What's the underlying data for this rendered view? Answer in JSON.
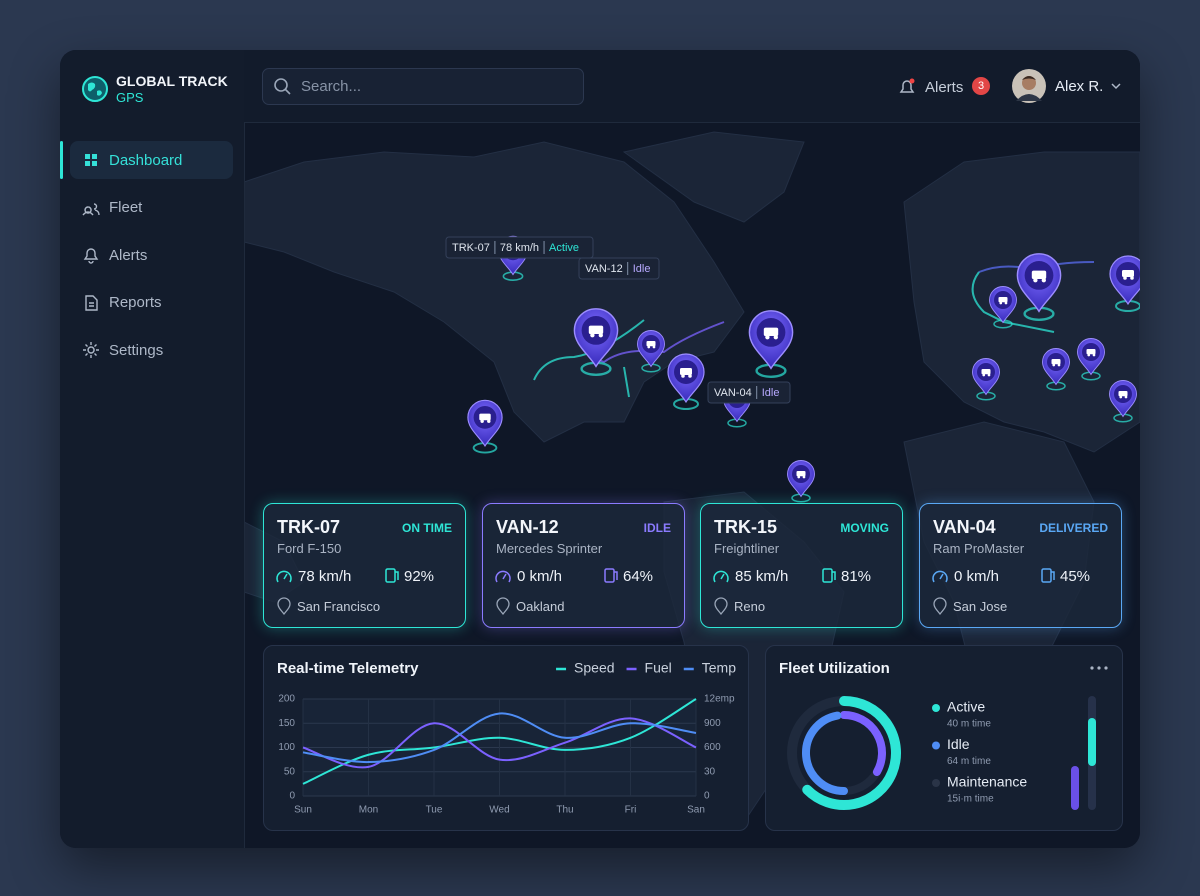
{
  "brand": {
    "title": "GLOBAL TRACK",
    "subtitle": "GPS"
  },
  "nav": [
    "Dashboard",
    "Fleet",
    "Alerts",
    "Reports",
    "Settings"
  ],
  "search_placeholder": "Search...",
  "header": {
    "alerts_label": "Alerts",
    "alerts_count": 3,
    "user": "Alex R."
  },
  "map_tooltips": [
    {
      "id": "TRK-07",
      "speed": "78 km/h",
      "status": "Active"
    },
    {
      "id": "VAN-12",
      "status": "Idle"
    },
    {
      "id": "VAN-04",
      "status": "Idle"
    }
  ],
  "vehicles": [
    {
      "id": "TRK-07",
      "model": "Ford F-150",
      "status": "ON TIME",
      "speed": "78 km/h",
      "fuel": "92%",
      "location": "San Francisco",
      "color": "#2ee6d6"
    },
    {
      "id": "VAN-12",
      "model": "Mercedes Sprinter",
      "status": "IDLE",
      "speed": "0 km/h",
      "fuel": "64%",
      "location": "Oakland",
      "color": "#8b7bff"
    },
    {
      "id": "TRK-15",
      "model": "Freightliner",
      "status": "MOVING",
      "speed": "85 km/h",
      "fuel": "81%",
      "location": "Reno",
      "color": "#2ee6d6"
    },
    {
      "id": "VAN-04",
      "model": "Ram ProMaster",
      "status": "DELIVERED",
      "speed": "0 km/h",
      "fuel": "45%",
      "location": "San Jose",
      "color": "#5aa8f5"
    }
  ],
  "telemetry": {
    "type": "line",
    "title": "Real-time Telemetry",
    "categories": [
      "Sun",
      "Mon",
      "Tue",
      "Wed",
      "Thu",
      "Fri",
      "San"
    ],
    "ylim": [
      0,
      200
    ],
    "yticks": [
      0,
      50,
      100,
      150,
      200
    ],
    "right_labels": [
      "12emp",
      "900",
      "600",
      "30",
      "0"
    ],
    "grid": true,
    "series": [
      {
        "name": "Speed",
        "color": "#2ee6d6",
        "values": [
          25,
          85,
          100,
          120,
          95,
          120,
          200
        ]
      },
      {
        "name": "Fuel",
        "color": "#7b61ff",
        "values": [
          100,
          60,
          150,
          75,
          110,
          160,
          100
        ]
      },
      {
        "name": "Temp",
        "color": "#4f8df5",
        "values": [
          90,
          70,
          95,
          170,
          120,
          150,
          130
        ]
      }
    ]
  },
  "utilization": {
    "title": "Fleet Utilization",
    "items": [
      {
        "label": "Active",
        "detail": "40 m time",
        "color": "#2ee6d6"
      },
      {
        "label": "Idle",
        "detail": "64 m time",
        "color": "#4f8df5"
      },
      {
        "label": "Maintenance",
        "detail": "15i·m time",
        "color": "#2a3447"
      }
    ]
  }
}
